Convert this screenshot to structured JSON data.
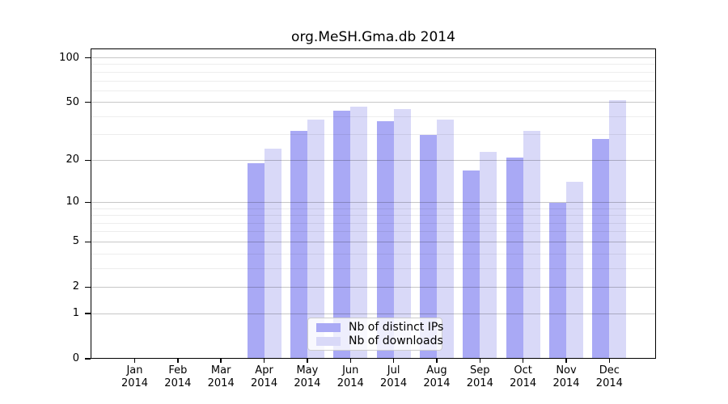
{
  "title": "org.MeSH.Gma.db 2014",
  "chart_data": {
    "type": "bar",
    "title": "org.MeSH.Gma.db 2014",
    "categories": [
      "Jan",
      "Feb",
      "Mar",
      "Apr",
      "May",
      "Jun",
      "Jul",
      "Aug",
      "Sep",
      "Oct",
      "Nov",
      "Dec"
    ],
    "year_label": "2014",
    "series": [
      {
        "name": "Nb of distinct IPs",
        "color": "#a9a9f5",
        "values": [
          0,
          0,
          0,
          19,
          32,
          44,
          37,
          30,
          17,
          21,
          10,
          28
        ]
      },
      {
        "name": "Nb of downloads",
        "color": "#d9d9f8",
        "values": [
          0,
          0,
          0,
          24,
          38,
          47,
          45,
          38,
          23,
          32,
          14,
          52
        ]
      }
    ],
    "y_axis": {
      "scale": "log1p",
      "ticks": [
        0,
        1,
        2,
        5,
        10,
        20,
        50,
        100
      ],
      "minor_gridlines": [
        3,
        4,
        6,
        7,
        8,
        9,
        30,
        40,
        60,
        70,
        80,
        90
      ],
      "range": [
        0,
        114
      ]
    },
    "x_axis": {
      "tick_labels_two_lines": true
    },
    "legend_position": "bottom-center",
    "grid": true
  }
}
